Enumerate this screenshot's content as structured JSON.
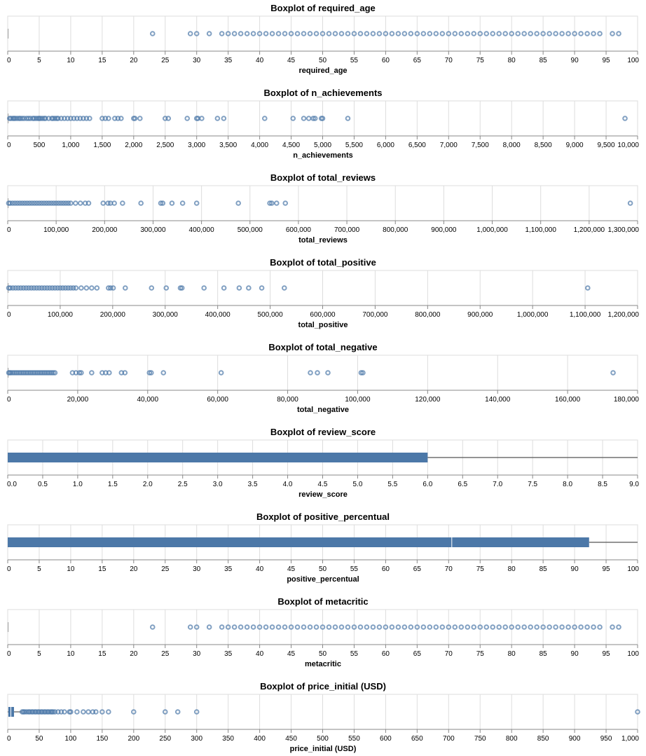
{
  "chart_data": [
    {
      "type": "boxplot",
      "title": "Boxplot of required_age",
      "xlabel": "required_age",
      "xlim": [
        0,
        100
      ],
      "ticks": [
        0,
        5,
        10,
        15,
        20,
        25,
        30,
        35,
        40,
        45,
        50,
        55,
        60,
        65,
        70,
        75,
        80,
        85,
        90,
        95,
        100
      ],
      "tick_labels": [
        "0",
        "5",
        "10",
        "15",
        "20",
        "25",
        "30",
        "35",
        "40",
        "45",
        "50",
        "55",
        "60",
        "65",
        "70",
        "75",
        "80",
        "85",
        "90",
        "95",
        "100"
      ],
      "box": {
        "q1": 0,
        "median": 0,
        "q3": 0,
        "whisker_low": 0,
        "whisker_high": 0
      },
      "outliers": [
        23,
        29,
        30,
        32,
        34,
        35,
        36,
        37,
        38,
        39,
        40,
        41,
        42,
        43,
        44,
        45,
        46,
        47,
        48,
        49,
        50,
        51,
        52,
        53,
        54,
        55,
        56,
        57,
        58,
        59,
        60,
        61,
        62,
        63,
        64,
        65,
        66,
        67,
        68,
        69,
        70,
        71,
        72,
        73,
        74,
        75,
        76,
        77,
        78,
        79,
        80,
        81,
        82,
        83,
        84,
        85,
        86,
        87,
        88,
        89,
        90,
        91,
        92,
        93,
        94,
        96,
        97
      ]
    },
    {
      "type": "boxplot",
      "title": "Boxplot of n_achievements",
      "xlabel": "n_achievements",
      "xlim": [
        0,
        10000
      ],
      "ticks": [
        0,
        500,
        1000,
        1500,
        2000,
        2500,
        3000,
        3500,
        4000,
        4500,
        5000,
        5500,
        6000,
        6500,
        7000,
        7500,
        8000,
        8500,
        9000,
        9500,
        10000
      ],
      "tick_labels": [
        "0",
        "500",
        "1,000",
        "1,500",
        "2,000",
        "2,500",
        "3,000",
        "3,500",
        "4,000",
        "4,500",
        "5,000",
        "5,500",
        "6,000",
        "6,500",
        "7,000",
        "7,500",
        "8,000",
        "8,500",
        "9,000",
        "9,500",
        "10,000"
      ],
      "box": {
        "q1": 0,
        "median": 0,
        "q3": 10,
        "whisker_low": 0,
        "whisker_high": 20
      },
      "outliers": [
        30,
        50,
        80,
        100,
        120,
        150,
        180,
        200,
        230,
        260,
        300,
        330,
        360,
        400,
        420,
        450,
        480,
        500,
        520,
        550,
        580,
        600,
        650,
        700,
        720,
        750,
        780,
        800,
        850,
        900,
        950,
        1000,
        1050,
        1100,
        1150,
        1200,
        1250,
        1300,
        1500,
        1550,
        1600,
        1700,
        1750,
        1800,
        2000,
        2020,
        2100,
        2500,
        2550,
        2850,
        3000,
        3020,
        3080,
        3330,
        3430,
        4080,
        4530,
        4700,
        4780,
        4850,
        4880,
        4980,
        5000,
        5400,
        9800
      ]
    },
    {
      "type": "boxplot",
      "title": "Boxplot of total_reviews",
      "xlabel": "total_reviews",
      "xlim": [
        0,
        1300000
      ],
      "ticks": [
        0,
        100000,
        200000,
        300000,
        400000,
        500000,
        600000,
        700000,
        800000,
        900000,
        1000000,
        1100000,
        1200000,
        1300000
      ],
      "tick_labels": [
        "0",
        "100,000",
        "200,000",
        "300,000",
        "400,000",
        "500,000",
        "600,000",
        "700,000",
        "800,000",
        "900,000",
        "1,000,000",
        "1,100,000",
        "1,200,000",
        "1,300,000"
      ],
      "box": {
        "q1": 0,
        "median": 0,
        "q3": 100,
        "whisker_low": 0,
        "whisker_high": 250
      },
      "outliers": [
        2000,
        5000,
        10000,
        15000,
        20000,
        25000,
        30000,
        35000,
        40000,
        45000,
        50000,
        55000,
        60000,
        65000,
        70000,
        75000,
        80000,
        85000,
        90000,
        95000,
        100000,
        105000,
        110000,
        115000,
        120000,
        125000,
        130000,
        140000,
        150000,
        160000,
        167000,
        197000,
        207000,
        212000,
        220000,
        237000,
        275000,
        316000,
        320000,
        339000,
        361000,
        390000,
        476000,
        541000,
        545000,
        555000,
        573000,
        1285000
      ]
    },
    {
      "type": "boxplot",
      "title": "Boxplot of total_positive",
      "xlabel": "total_positive",
      "xlim": [
        0,
        1200000
      ],
      "ticks": [
        0,
        100000,
        200000,
        300000,
        400000,
        500000,
        600000,
        700000,
        800000,
        900000,
        1000000,
        1100000,
        1200000
      ],
      "tick_labels": [
        "0",
        "100,000",
        "200,000",
        "300,000",
        "400,000",
        "500,000",
        "600,000",
        "700,000",
        "800,000",
        "900,000",
        "1,000,000",
        "1,100,000",
        "1,200,000"
      ],
      "box": {
        "q1": 0,
        "median": 0,
        "q3": 80,
        "whisker_low": 0,
        "whisker_high": 200
      },
      "outliers": [
        2000,
        5000,
        10000,
        15000,
        20000,
        25000,
        30000,
        35000,
        40000,
        45000,
        50000,
        55000,
        60000,
        65000,
        70000,
        75000,
        80000,
        85000,
        90000,
        95000,
        100000,
        105000,
        110000,
        115000,
        120000,
        125000,
        130000,
        140000,
        150000,
        160000,
        170000,
        192000,
        196000,
        201000,
        224000,
        274000,
        302000,
        329000,
        332000,
        374000,
        412000,
        441000,
        459000,
        484000,
        527000,
        1105000
      ]
    },
    {
      "type": "boxplot",
      "title": "Boxplot of total_negative",
      "xlabel": "total_negative",
      "xlim": [
        0,
        180000
      ],
      "ticks": [
        0,
        20000,
        40000,
        60000,
        80000,
        100000,
        120000,
        140000,
        160000,
        180000
      ],
      "tick_labels": [
        "0",
        "20,000",
        "40,000",
        "60,000",
        "80,000",
        "100,000",
        "120,000",
        "140,000",
        "160,000",
        "180,000"
      ],
      "box": {
        "q1": 0,
        "median": 0,
        "q3": 20,
        "whisker_low": 0,
        "whisker_high": 50
      },
      "outliers": [
        300,
        600,
        1000,
        1500,
        2000,
        2500,
        3000,
        3500,
        4000,
        4500,
        5000,
        5500,
        6000,
        6500,
        7000,
        7500,
        8000,
        8500,
        9000,
        9500,
        10000,
        10500,
        11000,
        11500,
        12000,
        12500,
        13000,
        13500,
        18500,
        19500,
        20500,
        21000,
        24000,
        27000,
        28000,
        29000,
        32500,
        33500,
        40500,
        41000,
        44500,
        61000,
        86500,
        88500,
        91500,
        101000,
        101500,
        173000
      ]
    },
    {
      "type": "boxplot",
      "title": "Boxplot of review_score",
      "xlabel": "review_score",
      "xlim": [
        0,
        9
      ],
      "ticks": [
        0,
        0.5,
        1,
        1.5,
        2,
        2.5,
        3,
        3.5,
        4,
        4.5,
        5,
        5.5,
        6,
        6.5,
        7,
        7.5,
        8,
        8.5,
        9
      ],
      "tick_labels": [
        "0.0",
        "0.5",
        "1.0",
        "1.5",
        "2.0",
        "2.5",
        "3.0",
        "3.5",
        "4.0",
        "4.5",
        "5.0",
        "5.5",
        "6.0",
        "6.5",
        "7.0",
        "7.5",
        "8.0",
        "8.5",
        "9.0"
      ],
      "box": {
        "q1": 0,
        "median": 0,
        "q3": 6,
        "whisker_low": 0,
        "whisker_high": 9
      },
      "outliers": []
    },
    {
      "type": "boxplot",
      "title": "Boxplot of positive_percentual",
      "xlabel": "positive_percentual",
      "xlim": [
        0,
        100
      ],
      "ticks": [
        0,
        5,
        10,
        15,
        20,
        25,
        30,
        35,
        40,
        45,
        50,
        55,
        60,
        65,
        70,
        75,
        80,
        85,
        90,
        95,
        100
      ],
      "tick_labels": [
        "0",
        "5",
        "10",
        "15",
        "20",
        "25",
        "30",
        "35",
        "40",
        "45",
        "50",
        "55",
        "60",
        "65",
        "70",
        "75",
        "80",
        "85",
        "90",
        "95",
        "100"
      ],
      "box": {
        "q1": 0,
        "median": 70.5,
        "q3": 92.3,
        "whisker_low": 0,
        "whisker_high": 100
      },
      "outliers": []
    },
    {
      "type": "boxplot",
      "title": "Boxplot of metacritic",
      "xlabel": "metacritic",
      "xlim": [
        0,
        100
      ],
      "ticks": [
        0,
        5,
        10,
        15,
        20,
        25,
        30,
        35,
        40,
        45,
        50,
        55,
        60,
        65,
        70,
        75,
        80,
        85,
        90,
        95,
        100
      ],
      "tick_labels": [
        "0",
        "5",
        "10",
        "15",
        "20",
        "25",
        "30",
        "35",
        "40",
        "45",
        "50",
        "55",
        "60",
        "65",
        "70",
        "75",
        "80",
        "85",
        "90",
        "95",
        "100"
      ],
      "box": {
        "q1": 0,
        "median": 0,
        "q3": 0,
        "whisker_low": 0,
        "whisker_high": 0
      },
      "outliers": [
        23,
        29,
        30,
        32,
        34,
        35,
        36,
        37,
        38,
        39,
        40,
        41,
        42,
        43,
        44,
        45,
        46,
        47,
        48,
        49,
        50,
        51,
        52,
        53,
        54,
        55,
        56,
        57,
        58,
        59,
        60,
        61,
        62,
        63,
        64,
        65,
        66,
        67,
        68,
        69,
        70,
        71,
        72,
        73,
        74,
        75,
        76,
        77,
        78,
        79,
        80,
        81,
        82,
        83,
        84,
        85,
        86,
        87,
        88,
        89,
        90,
        91,
        92,
        93,
        94,
        96,
        97
      ]
    },
    {
      "type": "boxplot",
      "title": "Boxplot of price_initial (USD)",
      "xlabel": "price_initial (USD)",
      "xlim": [
        0,
        1000
      ],
      "ticks": [
        0,
        50,
        100,
        150,
        200,
        250,
        300,
        350,
        400,
        450,
        500,
        550,
        600,
        650,
        700,
        750,
        800,
        850,
        900,
        950,
        1000
      ],
      "tick_labels": [
        "0",
        "50",
        "100",
        "150",
        "200",
        "250",
        "300",
        "350",
        "400",
        "450",
        "500",
        "550",
        "600",
        "650",
        "700",
        "750",
        "800",
        "850",
        "900",
        "950",
        "1,000"
      ],
      "box": {
        "q1": 0.99,
        "median": 4.99,
        "q3": 9.99,
        "whisker_low": 0,
        "whisker_high": 22
      },
      "outliers": [
        23,
        25,
        27,
        30,
        33,
        35,
        38,
        40,
        43,
        45,
        48,
        50,
        53,
        55,
        58,
        60,
        63,
        65,
        68,
        70,
        72,
        75,
        80,
        85,
        90,
        98,
        100,
        110,
        120,
        128,
        135,
        140,
        150,
        160,
        200,
        250,
        270,
        300,
        1000
      ]
    }
  ],
  "colors": {
    "primary": "#4c78a8",
    "grid": "#dddddd",
    "axis": "#888888",
    "whisker": "#555555"
  }
}
